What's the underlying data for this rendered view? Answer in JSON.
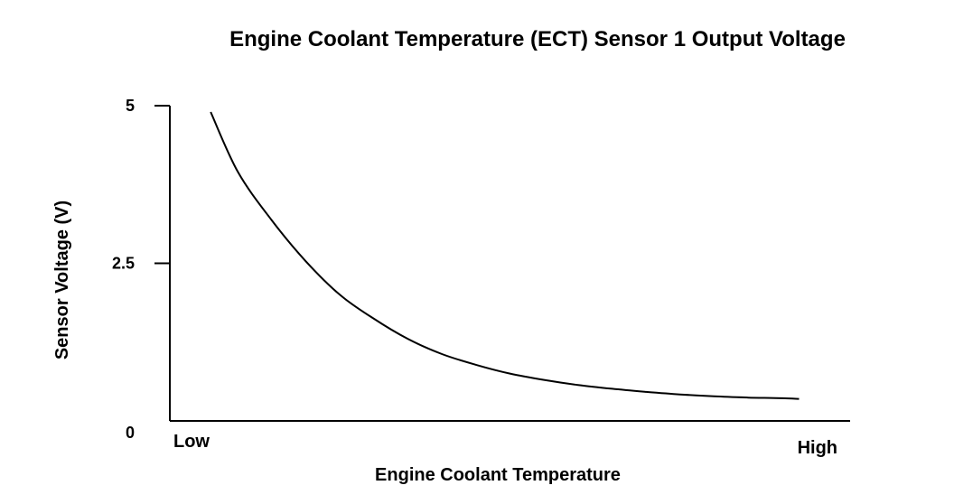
{
  "chart_data": {
    "type": "line",
    "title": "Engine Coolant Temperature (ECT) Sensor 1 Output Voltage",
    "xlabel": "Engine Coolant Temperature",
    "ylabel": "Sensor Voltage (V)",
    "x_tick_labels": [
      "Low",
      "High"
    ],
    "y_ticks": [
      0,
      2.5,
      5
    ],
    "y_tick_labels": [
      "0",
      "2.5",
      "5"
    ],
    "ylim": [
      0,
      5
    ],
    "xlim": [
      0,
      1
    ],
    "grid": false,
    "series": [
      {
        "x": [
          0.06,
          0.1,
          0.15,
          0.2,
          0.25,
          0.3,
          0.35,
          0.4,
          0.45,
          0.5,
          0.55,
          0.6,
          0.65,
          0.7,
          0.75,
          0.8,
          0.85,
          0.9,
          0.925
        ],
        "y": [
          4.9,
          3.95,
          3.18,
          2.53,
          2.0,
          1.62,
          1.3,
          1.06,
          0.89,
          0.75,
          0.65,
          0.57,
          0.51,
          0.46,
          0.42,
          0.39,
          0.37,
          0.36,
          0.35
        ],
        "color": "#000000"
      }
    ]
  }
}
